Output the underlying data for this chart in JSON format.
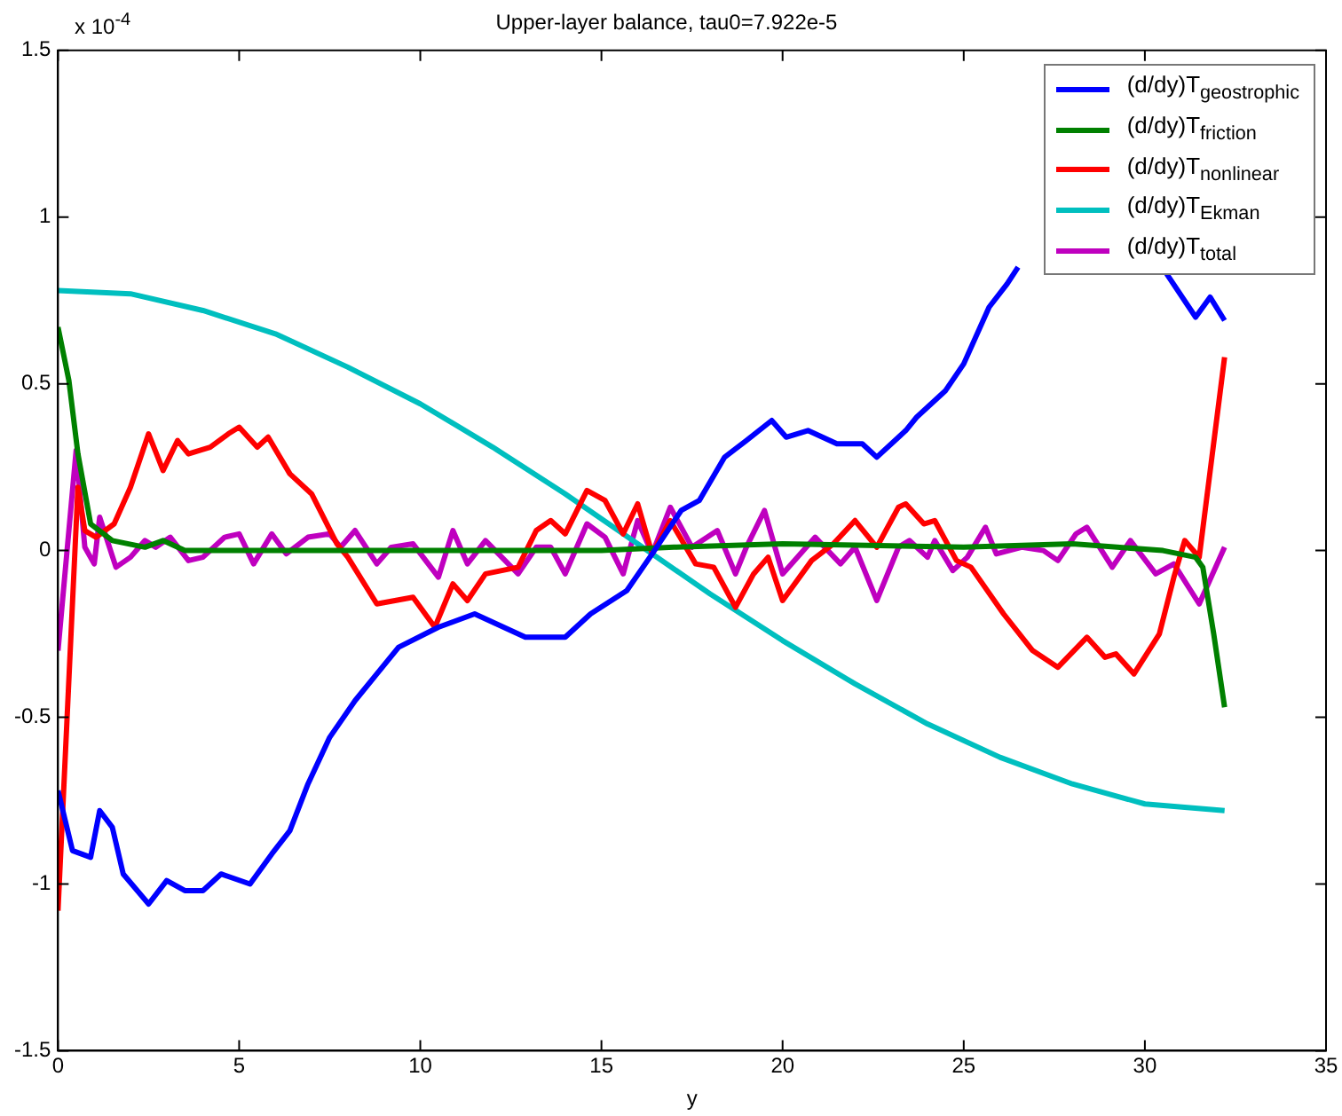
{
  "chart_data": {
    "type": "line",
    "title": "Upper-layer balance, tau0=7.922e-5",
    "xlabel": "y",
    "annotations": [
      "x 10$^{-4}$"
    ],
    "xlim": [
      0,
      35
    ],
    "xticks": [
      0,
      5,
      10,
      15,
      20,
      25,
      30,
      35
    ],
    "ylim": [
      -1.5,
      1.5
    ],
    "yticks": [
      -1.5,
      -1,
      -0.5,
      0,
      0.5,
      1,
      1.5
    ],
    "legend": "top right",
    "series": [
      {
        "name": "(d/dy)T$_{geostrophic}$",
        "color": "#0000ff",
        "x": [
          0,
          0.4,
          0.9,
          1.15,
          1.5,
          1.8,
          2.5,
          3.0,
          3.5,
          4.0,
          4.5,
          5.3,
          5.9,
          6.4,
          6.9,
          7.5,
          8.2,
          9.4,
          10.5,
          11.5,
          12.9,
          14.0,
          14.7,
          15.7,
          16.4,
          17.2,
          17.7,
          18.4,
          19.0,
          19.7,
          20.1,
          20.7,
          21.5,
          22.2,
          22.6,
          23.4,
          23.7,
          24.5,
          25.0,
          25.7,
          26.2,
          26.5,
          27,
          28,
          29,
          30,
          30.6,
          31.4,
          31.8,
          32.2
        ],
        "values": [
          -0.72,
          -0.9,
          -0.92,
          -0.78,
          -0.83,
          -0.97,
          -1.06,
          -0.99,
          -1.02,
          -1.02,
          -0.97,
          -1.0,
          -0.91,
          -0.84,
          -0.7,
          -0.56,
          -0.45,
          -0.29,
          -0.23,
          -0.19,
          -0.26,
          -0.26,
          -0.19,
          -0.12,
          -0.01,
          0.12,
          0.15,
          0.28,
          0.33,
          0.39,
          0.34,
          0.36,
          0.32,
          0.32,
          0.28,
          0.36,
          0.4,
          0.48,
          0.56,
          0.73,
          0.8,
          0.85,
          null,
          null,
          null,
          null,
          0.83,
          0.7,
          0.76,
          0.69
        ]
      },
      {
        "name": "(d/dy)T$_{friction}$",
        "color": "#008000",
        "x": [
          0,
          0.3,
          0.55,
          0.9,
          1.5,
          2.4,
          2.9,
          3.5,
          5,
          10,
          15,
          17,
          20,
          25,
          28,
          30.5,
          31.4,
          31.6,
          31.9,
          32.2
        ],
        "values": [
          0.67,
          0.51,
          0.29,
          0.08,
          0.03,
          0.01,
          0.03,
          0,
          0,
          0,
          0,
          0.01,
          0.02,
          0.01,
          0.02,
          0,
          -0.02,
          -0.05,
          -0.25,
          -0.47
        ]
      },
      {
        "name": "(d/dy)T$_{nonlinear}$",
        "color": "#ff0000",
        "x": [
          0,
          0.55,
          0.74,
          1.05,
          1.55,
          2.0,
          2.5,
          2.9,
          3.3,
          3.6,
          4.2,
          4.7,
          5.0,
          5.5,
          5.8,
          6.4,
          7.0,
          7.7,
          8.0,
          8.8,
          9.3,
          9.8,
          10.4,
          10.9,
          11.3,
          11.8,
          12.7,
          13.2,
          13.6,
          14.0,
          14.6,
          15.1,
          15.6,
          16.0,
          16.4,
          16.9,
          17.6,
          18.1,
          18.7,
          19.2,
          19.6,
          20.0,
          20.8,
          21.4,
          22.0,
          22.6,
          23.2,
          23.4,
          23.9,
          24.2,
          24.8,
          25.2,
          26.1,
          26.9,
          27.6,
          28.4,
          28.9,
          29.2,
          29.7,
          30.4,
          30.8,
          31.1,
          31.5,
          32.2
        ],
        "values": [
          -1.08,
          0.19,
          0.06,
          0.04,
          0.08,
          0.19,
          0.35,
          0.24,
          0.33,
          0.29,
          0.31,
          0.35,
          0.37,
          0.31,
          0.34,
          0.23,
          0.17,
          0.02,
          -0.02,
          -0.16,
          -0.15,
          -0.14,
          -0.23,
          -0.1,
          -0.15,
          -0.07,
          -0.05,
          0.06,
          0.09,
          0.05,
          0.18,
          0.15,
          0.05,
          0.14,
          -0.01,
          0.09,
          -0.04,
          -0.05,
          -0.17,
          -0.07,
          -0.02,
          -0.15,
          -0.03,
          0.02,
          0.09,
          0.01,
          0.13,
          0.14,
          0.08,
          0.09,
          -0.03,
          -0.05,
          -0.19,
          -0.3,
          -0.35,
          -0.26,
          -0.32,
          -0.31,
          -0.37,
          -0.25,
          -0.08,
          0.03,
          -0.02,
          0.58
        ]
      },
      {
        "name": "(d/dy)T$_{Ekman}$",
        "color": "#00bfbf",
        "x": [
          0,
          2,
          4,
          6,
          8,
          10,
          12,
          14,
          16,
          18,
          20,
          22,
          24,
          26,
          28,
          30,
          32.2
        ],
        "values": [
          0.78,
          0.77,
          0.72,
          0.65,
          0.55,
          0.44,
          0.31,
          0.17,
          0.02,
          -0.13,
          -0.27,
          -0.4,
          -0.52,
          -0.62,
          -0.7,
          -0.76,
          -0.78
        ]
      },
      {
        "name": "(d/dy)T$_{total}$",
        "color": "#bf00bf",
        "x": [
          0,
          0.3,
          0.5,
          0.74,
          1.0,
          1.15,
          1.6,
          2.0,
          2.4,
          2.7,
          3.1,
          3.6,
          4.0,
          4.6,
          5.0,
          5.4,
          5.9,
          6.3,
          6.9,
          7.5,
          7.8,
          8.2,
          8.8,
          9.2,
          9.8,
          10.5,
          10.9,
          11.3,
          11.8,
          12.7,
          13.2,
          13.6,
          14.0,
          14.6,
          15.1,
          15.6,
          16.0,
          16.4,
          16.9,
          17.5,
          18.2,
          18.7,
          19.0,
          19.5,
          20.0,
          20.9,
          21.6,
          22.0,
          22.6,
          23.2,
          23.5,
          24.0,
          24.2,
          24.7,
          25.1,
          25.6,
          25.9,
          26.6,
          27.2,
          27.6,
          28.1,
          28.4,
          29.1,
          29.6,
          30.3,
          30.8,
          31.5,
          32.2
        ],
        "values": [
          -0.3,
          0.06,
          0.3,
          0.01,
          -0.04,
          0.1,
          -0.05,
          -0.02,
          0.03,
          0.01,
          0.04,
          -0.03,
          -0.02,
          0.04,
          0.05,
          -0.04,
          0.05,
          -0.01,
          0.04,
          0.05,
          0.01,
          0.06,
          -0.04,
          0.01,
          0.02,
          -0.08,
          0.06,
          -0.04,
          0.03,
          -0.07,
          0.01,
          0.01,
          -0.07,
          0.08,
          0.04,
          -0.07,
          0.09,
          -0.01,
          0.13,
          0.01,
          0.06,
          -0.07,
          0.01,
          0.12,
          -0.07,
          0.04,
          -0.04,
          0.01,
          -0.15,
          0.01,
          0.03,
          -0.02,
          0.03,
          -0.06,
          -0.02,
          0.07,
          -0.01,
          0.01,
          0,
          -0.03,
          0.05,
          0.07,
          -0.05,
          0.03,
          -0.07,
          -0.04,
          -0.16,
          0.01
        ]
      }
    ]
  }
}
